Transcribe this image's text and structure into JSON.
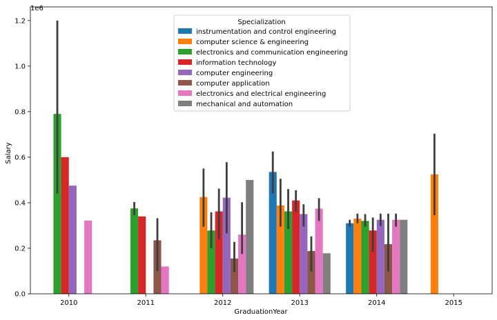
{
  "chart_data": {
    "type": "bar",
    "title": "",
    "xlabel": "GraduationYear",
    "ylabel": "Salary",
    "y_multiplier_label": "1e6",
    "ylim": [
      0,
      1260000
    ],
    "yticks": [
      0,
      200000,
      400000,
      600000,
      800000,
      1000000,
      1200000
    ],
    "ytick_labels": [
      "0.0",
      "0.2",
      "0.4",
      "0.6",
      "0.8",
      "1.0",
      "1.2"
    ],
    "categories": [
      "2010",
      "2011",
      "2012",
      "2013",
      "2014",
      "2015"
    ],
    "legend": {
      "title": "Specialization",
      "placement": "upper center"
    },
    "grid": false,
    "series": [
      {
        "name": "instrumentation and control engineering",
        "color": "#1f77b4",
        "values": [
          null,
          null,
          null,
          535000,
          310000,
          null
        ],
        "err_low": [
          null,
          null,
          null,
          440000,
          295000,
          null
        ],
        "err_high": [
          null,
          null,
          null,
          625000,
          325000,
          null
        ]
      },
      {
        "name": "computer science & engineering",
        "color": "#ff7f0e",
        "values": [
          null,
          null,
          425000,
          388000,
          330000,
          525000
        ],
        "err_low": [
          null,
          null,
          295000,
          295000,
          310000,
          345000
        ],
        "err_high": [
          null,
          null,
          550000,
          505000,
          352000,
          703000
        ]
      },
      {
        "name": "electronics and communication engineering",
        "color": "#2ca02c",
        "values": [
          790000,
          375000,
          278000,
          362000,
          320000,
          null
        ],
        "err_low": [
          440000,
          345000,
          200000,
          285000,
          295000,
          null
        ],
        "err_high": [
          1200000,
          403000,
          358000,
          460000,
          350000,
          null
        ]
      },
      {
        "name": "information technology",
        "color": "#d62728",
        "values": [
          600000,
          340000,
          362000,
          410000,
          278000,
          null
        ],
        "err_low": [
          null,
          null,
          240000,
          360000,
          185000,
          null
        ],
        "err_high": [
          null,
          null,
          462000,
          455000,
          335000,
          null
        ]
      },
      {
        "name": "computer engineering",
        "color": "#9467bd",
        "values": [
          475000,
          null,
          422000,
          350000,
          325000,
          null
        ],
        "err_low": [
          null,
          null,
          265000,
          295000,
          298000,
          null
        ],
        "err_high": [
          null,
          null,
          578000,
          393000,
          352000,
          null
        ]
      },
      {
        "name": "computer application",
        "color": "#8c564b",
        "values": [
          null,
          235000,
          155000,
          188000,
          218000,
          null
        ],
        "err_low": [
          null,
          100000,
          95000,
          98000,
          98000,
          null
        ],
        "err_high": [
          null,
          332000,
          228000,
          252000,
          352000,
          null
        ]
      },
      {
        "name": "electronics and electrical engineering",
        "color": "#e377c2",
        "values": [
          322000,
          120000,
          260000,
          374000,
          325000,
          null
        ],
        "err_low": [
          null,
          null,
          175000,
          320000,
          295000,
          null
        ],
        "err_high": [
          null,
          null,
          402000,
          420000,
          352000,
          null
        ]
      },
      {
        "name": "mechanical and automation",
        "color": "#7f7f7f",
        "values": [
          null,
          null,
          500000,
          178000,
          325000,
          null
        ],
        "err_low": [
          null,
          null,
          null,
          null,
          null,
          null
        ],
        "err_high": [
          null,
          null,
          null,
          null,
          null,
          null
        ]
      }
    ]
  }
}
